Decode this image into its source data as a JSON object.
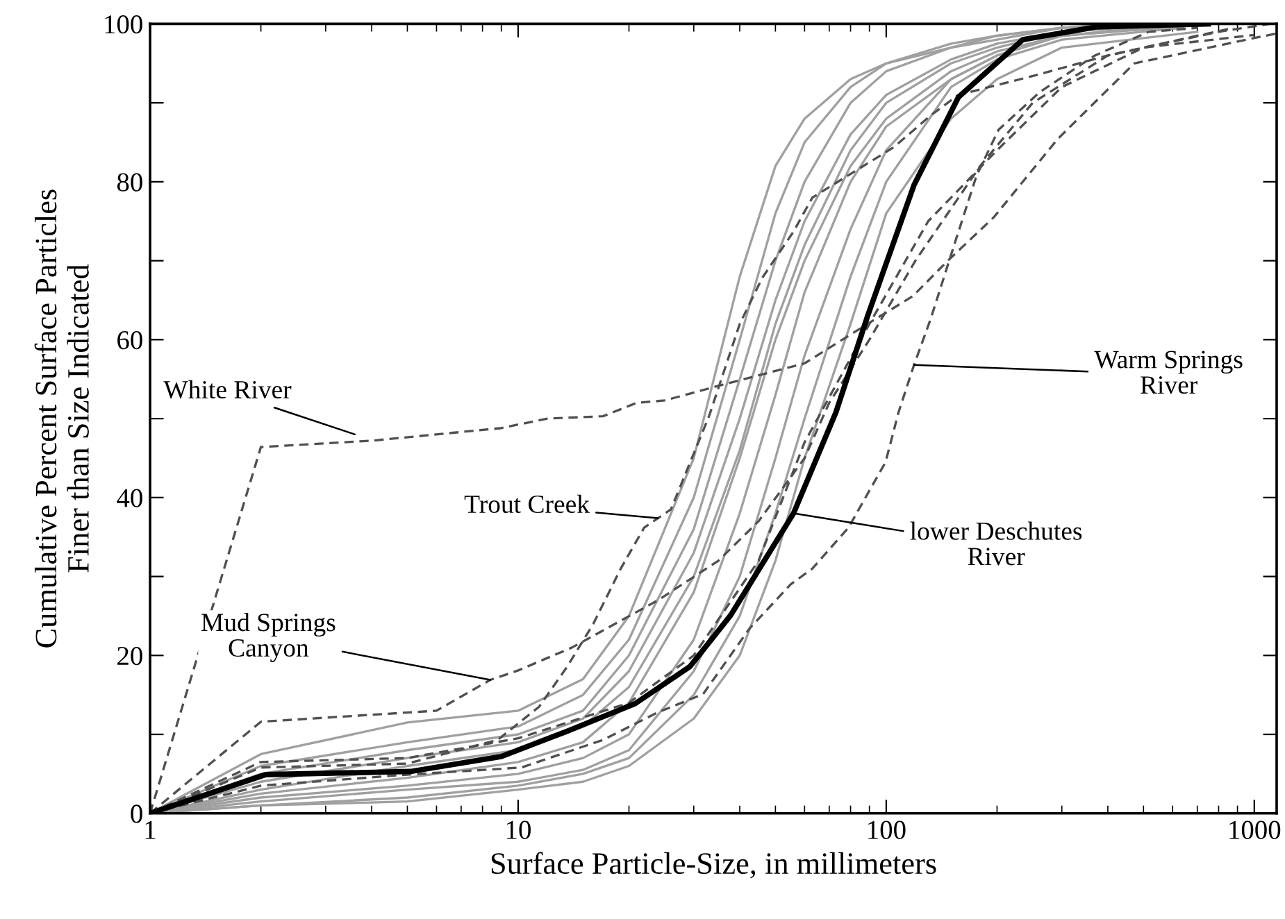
{
  "chart_data": {
    "type": "line",
    "xlabel": "Surface Particle-Size, in millimeters",
    "ylabel": "Cumulative Percent Surface Particles\nFiner than Size Indicated",
    "log": "x",
    "xlim": [
      1,
      1150
    ],
    "xticks": [
      1,
      10,
      100,
      1000
    ],
    "ylim": [
      0,
      100
    ],
    "yticks": [
      0,
      {
        "value": 10,
        "label": null
      },
      20,
      {
        "value": 30,
        "label": null
      },
      40,
      {
        "value": 50,
        "label": null
      },
      60,
      {
        "value": 70,
        "label": null
      },
      80,
      {
        "value": 90,
        "label": null
      },
      100
    ],
    "grid": false,
    "legend": false,
    "marker": "none",
    "series": [
      {
        "color": "#a0a0a0",
        "line_style": "solid",
        "x": [
          1,
          2,
          5,
          10,
          15,
          20,
          30,
          40,
          50,
          60,
          80,
          100,
          150,
          200,
          300,
          420
        ],
        "values": [
          0,
          7.5,
          11.5,
          13,
          17,
          25,
          45,
          68,
          82,
          88,
          93,
          95,
          97.5,
          98.5,
          99.5,
          100
        ]
      },
      {
        "color": "#a0a0a0",
        "line_style": "solid",
        "x": [
          1,
          2,
          5,
          10,
          15,
          20,
          30,
          40,
          50,
          60,
          80,
          100,
          150,
          200,
          300,
          480
        ],
        "values": [
          0,
          6,
          9,
          11,
          15,
          22,
          40,
          60,
          76,
          85,
          92,
          95,
          97,
          98.5,
          99.5,
          100
        ]
      },
      {
        "color": "#a0a0a0",
        "line_style": "solid",
        "x": [
          1,
          2,
          5,
          10,
          15,
          20,
          30,
          40,
          50,
          60,
          80,
          100,
          150,
          200,
          300,
          540
        ],
        "values": [
          0,
          5,
          8,
          10,
          13,
          20,
          36,
          55,
          70,
          80,
          90,
          94,
          97,
          98,
          99.5,
          100
        ]
      },
      {
        "color": "#a0a0a0",
        "line_style": "solid",
        "x": [
          1,
          2,
          5,
          10,
          15,
          20,
          30,
          40,
          50,
          60,
          80,
          100,
          150,
          200,
          300,
          600
        ],
        "values": [
          0,
          4,
          7,
          9,
          12,
          18,
          33,
          50,
          65,
          75,
          86,
          91,
          95.5,
          97.5,
          99,
          100
        ]
      },
      {
        "color": "#a0a0a0",
        "line_style": "solid",
        "x": [
          1,
          2,
          5,
          10,
          15,
          20,
          30,
          40,
          50,
          60,
          80,
          100,
          150,
          200,
          300,
          660
        ],
        "values": [
          0,
          3,
          6,
          8,
          11,
          16,
          30,
          46,
          62,
          72,
          84,
          90,
          95,
          97,
          99,
          100
        ]
      },
      {
        "color": "#a0a0a0",
        "line_style": "solid",
        "x": [
          1,
          2,
          5,
          10,
          15,
          20,
          30,
          40,
          50,
          60,
          80,
          100,
          150,
          200,
          300,
          720
        ],
        "values": [
          0,
          2.5,
          4.5,
          6.5,
          9,
          14,
          28,
          45,
          60,
          70,
          82,
          88,
          94,
          96.5,
          98.5,
          100
        ]
      },
      {
        "color": "#a0a0a0",
        "line_style": "solid",
        "x": [
          1,
          2,
          5,
          10,
          15,
          20,
          30,
          40,
          50,
          60,
          80,
          100,
          150,
          200,
          300,
          500
        ],
        "values": [
          0,
          2,
          3.5,
          5,
          7,
          10,
          22,
          38,
          53,
          66,
          80,
          87,
          93,
          96,
          98.5,
          99.5
        ]
      },
      {
        "color": "#a0a0a0",
        "line_style": "solid",
        "x": [
          1,
          2,
          5,
          10,
          15,
          20,
          30,
          40,
          50,
          60,
          80,
          100,
          150,
          200,
          300,
          560
        ],
        "values": [
          0,
          1.5,
          3,
          4,
          5.5,
          8,
          18,
          30,
          45,
          58,
          74,
          84,
          93,
          96,
          98.5,
          99.5
        ]
      },
      {
        "color": "#a0a0a0",
        "line_style": "solid",
        "x": [
          1,
          2,
          5,
          10,
          15,
          20,
          30,
          40,
          50,
          60,
          80,
          100,
          150,
          200,
          300,
          640
        ],
        "values": [
          0,
          1,
          2,
          3.5,
          5,
          7,
          15,
          25,
          38,
          50,
          68,
          80,
          92,
          95.5,
          98,
          99.5
        ]
      },
      {
        "color": "#a0a0a0",
        "line_style": "solid",
        "x": [
          1,
          2,
          5,
          10,
          15,
          20,
          30,
          40,
          50,
          60,
          80,
          100,
          150,
          200,
          300,
          700
        ],
        "values": [
          0,
          1,
          1.5,
          3,
          4,
          6,
          12,
          20,
          32,
          45,
          62,
          76,
          88,
          93,
          97,
          99
        ]
      },
      {
        "color": "#505050",
        "line_style": "dashed",
        "x": [
          1,
          2,
          5,
          10,
          20,
          30,
          45,
          60,
          90,
          130,
          200,
          300,
          500,
          1000
        ],
        "values": [
          0,
          6.5,
          7,
          9.5,
          14,
          20,
          32,
          47,
          62,
          75,
          84,
          92,
          97,
          98.6
        ]
      },
      {
        "color": "#505050",
        "line_style": "dashed",
        "x": [
          1,
          2,
          4,
          9,
          12,
          17,
          21,
          25,
          36,
          60,
          89,
          118,
          147,
          196,
          292,
          472,
          1150
        ],
        "values": [
          0,
          46.4,
          47.2,
          48.8,
          50,
          50.3,
          52,
          52.3,
          54.3,
          57,
          62,
          65.5,
          70,
          75.5,
          85.4,
          95,
          98.8
        ]
      },
      {
        "color": "#505050",
        "line_style": "dashed",
        "x": [
          1,
          2,
          5,
          8.8,
          11.4,
          13.6,
          16,
          19,
          22,
          26,
          33,
          40,
          46,
          56,
          63,
          105,
          132,
          157,
          255,
          400,
          700,
          880
        ],
        "values": [
          0,
          5.8,
          6.3,
          9.3,
          13.5,
          18.6,
          24,
          31,
          36.2,
          38.5,
          50.3,
          62,
          67.8,
          73.7,
          78,
          84.4,
          88.4,
          91,
          93.5,
          96,
          98.5,
          99.5
        ]
      },
      {
        "color": "#505050",
        "line_style": "dashed",
        "x": [
          1,
          2,
          6,
          8.4,
          10,
          14,
          24,
          35,
          45,
          60,
          70,
          90,
          120,
          180,
          250,
          400,
          800,
          1100
        ],
        "values": [
          0,
          11.6,
          13,
          16.9,
          18.1,
          21,
          27,
          32,
          37,
          45,
          52,
          60,
          70,
          82,
          90,
          96,
          99,
          100
        ]
      },
      {
        "color": "#505050",
        "line_style": "dashed",
        "x": [
          1,
          2,
          5,
          10.2,
          17,
          24,
          31.8,
          42.5,
          55,
          63,
          79,
          99.6,
          108,
          119,
          132,
          153,
          176,
          202,
          262,
          369,
          517,
          700
        ],
        "values": [
          0,
          3.5,
          4.9,
          5.8,
          9.3,
          12.8,
          15.1,
          23.4,
          29,
          31,
          36.2,
          44.5,
          50.8,
          56.8,
          62.6,
          72,
          80.8,
          86.6,
          91.4,
          96,
          99,
          99.5
        ]
      },
      {
        "color": "#000000",
        "line_style": "solid",
        "x": [
          1,
          2.06,
          5.1,
          9,
          13.6,
          20.8,
          29.3,
          37.8,
          56,
          73,
          89,
          119,
          157,
          235,
          370,
          750
        ],
        "values": [
          0,
          4.9,
          5.3,
          7.2,
          10.4,
          13.9,
          18.6,
          25.1,
          38,
          50.8,
          63,
          79.6,
          90.7,
          98,
          99.6,
          100
        ]
      }
    ],
    "annotations": [
      {
        "text": "White River",
        "x": 3.6,
        "y": 48
      },
      {
        "text": "Trout Creek",
        "x": 24,
        "y": 37.4
      },
      {
        "text": "Mud Springs\nCanyon",
        "x": 8.4,
        "y": 16.9
      },
      {
        "text": "lower Deschutes\nRiver",
        "x": 56,
        "y": 38
      },
      {
        "text": "Warm Springs\nRiver",
        "x": 119,
        "y": 56.8
      }
    ]
  }
}
